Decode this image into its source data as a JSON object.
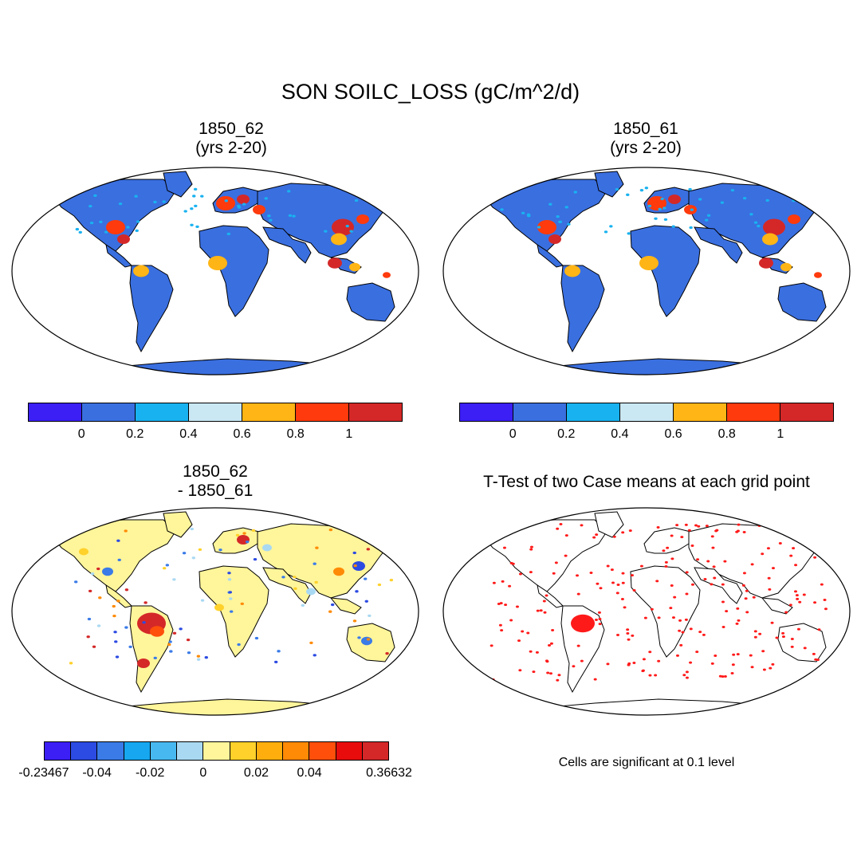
{
  "title": "SON SOILC_LOSS (gC/m^2/d)",
  "panels": [
    {
      "id": "p1",
      "title_line1": "1850_62",
      "title_line2": "(yrs 2-20)"
    },
    {
      "id": "p2",
      "title_line1": "1850_61",
      "title_line2": "(yrs 2-20)"
    },
    {
      "id": "p3",
      "title_line1": "1850_62",
      "title_line2": "- 1850_61"
    },
    {
      "id": "p4",
      "title_line1": "T-Test of two Case means at each grid point",
      "title_line2": ""
    }
  ],
  "colorbars": {
    "top": {
      "colors": [
        "#3b1ff5",
        "#3a6fe0",
        "#19b2f0",
        "#c9e8f4",
        "#ffb515",
        "#ff3a0c",
        "#d42828"
      ],
      "labels": [
        "0",
        "0.2",
        "0.4",
        "0.6",
        "0.8",
        "1"
      ]
    },
    "diff": {
      "colors": [
        "#3b1ff5",
        "#2c4be2",
        "#3a7be8",
        "#16a7f0",
        "#47b9f0",
        "#a9d9f2",
        "#fff59a",
        "#ffd12a",
        "#ffae0d",
        "#ff8a05",
        "#ff4f0a",
        "#e80c0c",
        "#d42828"
      ],
      "labels": [
        "-0.23467",
        "-0.04",
        "-0.02",
        "0",
        "0.02",
        "0.04",
        "0.36632"
      ]
    }
  },
  "significance_note": "Cells are significant at 0.1 level",
  "map_palettes": {
    "abs_land": "#3a6fe0",
    "abs_hot": [
      "#ff3a0c",
      "#d42828",
      "#ffb515"
    ],
    "diff_land": "#fff59a",
    "diff_warm": [
      "#ffd12a",
      "#ff8a05",
      "#d42828"
    ],
    "diff_cool": [
      "#a9d9f2",
      "#3a7be8",
      "#2c4be2"
    ],
    "ttest_mark": "#ff1a1a"
  }
}
